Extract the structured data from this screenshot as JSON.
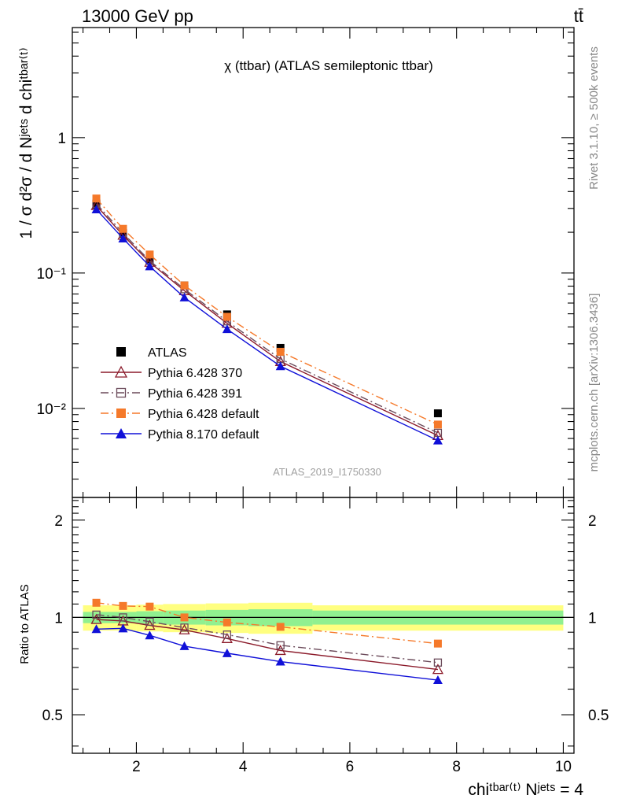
{
  "header": {
    "left": "13000 GeV pp",
    "right": "tt̄"
  },
  "side_labels": {
    "rivet": "Rivet 3.1.10, ≥ 500k events",
    "mcplots": "mcplots.cern.ch [arXiv:1306.3436]"
  },
  "plot_title": "χ (ttbar) (ATLAS semileptonic ttbar)",
  "analysis_label": "ATLAS_2019_I1750330",
  "axes": {
    "ylabel_main": "1 / σ d²σ / d Nʲᵉᵗˢ d chiᵗᵇᵃʳ⁽ᵗ⁾",
    "ylabel_ratio": "Ratio to ATLAS",
    "xlabel": "chiᵗᵇᵃʳ⁽ᵗ⁾ Nʲᵉᵗˢ = 4",
    "xticks": [
      "2",
      "4",
      "6",
      "8",
      "10"
    ],
    "yticks_main": [
      "1",
      "10⁻¹",
      "10⁻²"
    ],
    "yticks_ratio": [
      "2",
      "1",
      "0.5"
    ]
  },
  "legend": [
    {
      "label": "ATLAS",
      "color": "#000000",
      "marker": "filled-square",
      "line": "none"
    },
    {
      "label": "Pythia 6.428 370",
      "color": "#8b1a2a",
      "marker": "open-triangle",
      "line": "solid"
    },
    {
      "label": "Pythia 6.428 391",
      "color": "#6b4a5a",
      "marker": "open-square",
      "line": "dashdot"
    },
    {
      "label": "Pythia 6.428 default",
      "color": "#f5792a",
      "marker": "filled-square",
      "line": "dashdot"
    },
    {
      "label": "Pythia 8.170 default",
      "color": "#1010d8",
      "marker": "filled-triangle",
      "line": "solid"
    }
  ],
  "chart_data": [
    {
      "type": "line",
      "panel": "main",
      "x": [
        1.25,
        1.75,
        2.25,
        2.9,
        3.7,
        4.7,
        7.65
      ],
      "xlim": [
        0.8,
        10.2
      ],
      "ylim": [
        0.0022,
        6.5
      ],
      "yscale": "log",
      "series": [
        {
          "name": "ATLAS",
          "values": [
            0.32,
            0.195,
            0.126,
            0.081,
            0.0495,
            0.028,
            0.0092
          ],
          "color": "#000000"
        },
        {
          "name": "Pythia 6.428 370",
          "values": [
            0.315,
            0.19,
            0.12,
            0.074,
            0.0425,
            0.0222,
            0.0063
          ],
          "color": "#8b1a2a"
        },
        {
          "name": "Pythia 6.428 391",
          "values": [
            0.325,
            0.197,
            0.123,
            0.076,
            0.044,
            0.0232,
            0.0066
          ],
          "color": "#6b4a5a"
        },
        {
          "name": "Pythia 6.428 default",
          "values": [
            0.355,
            0.212,
            0.137,
            0.081,
            0.0475,
            0.0262,
            0.0076
          ],
          "color": "#f5792a"
        },
        {
          "name": "Pythia 8.170 default",
          "values": [
            0.295,
            0.18,
            0.112,
            0.066,
            0.0385,
            0.0205,
            0.0058
          ],
          "color": "#1010d8"
        }
      ]
    },
    {
      "type": "line",
      "panel": "ratio",
      "x": [
        1.25,
        1.75,
        2.25,
        2.9,
        3.7,
        4.7,
        7.65
      ],
      "xlim": [
        0.8,
        10.2
      ],
      "ylim": [
        0.38,
        2.35
      ],
      "yscale": "log",
      "reference": 1.0,
      "bands": {
        "edges": [
          1.0,
          1.5,
          2.0,
          2.5,
          3.3,
          4.1,
          5.3,
          10.0
        ],
        "stat": [
          0.04,
          0.04,
          0.045,
          0.05,
          0.055,
          0.06,
          0.05
        ],
        "total": [
          0.09,
          0.09,
          0.095,
          0.1,
          0.105,
          0.11,
          0.09
        ]
      },
      "series": [
        {
          "name": "Pythia 6.428 370",
          "values": [
            0.985,
            0.975,
            0.945,
            0.915,
            0.86,
            0.79,
            0.69
          ],
          "color": "#8b1a2a"
        },
        {
          "name": "Pythia 6.428 391",
          "values": [
            1.02,
            1.0,
            0.97,
            0.93,
            0.885,
            0.82,
            0.725
          ],
          "color": "#6b4a5a"
        },
        {
          "name": "Pythia 6.428 default",
          "values": [
            1.11,
            1.085,
            1.08,
            1.0,
            0.965,
            0.935,
            0.83
          ],
          "color": "#f5792a"
        },
        {
          "name": "Pythia 8.170 default",
          "values": [
            0.92,
            0.925,
            0.88,
            0.815,
            0.775,
            0.73,
            0.64
          ],
          "color": "#1010d8"
        }
      ]
    }
  ]
}
